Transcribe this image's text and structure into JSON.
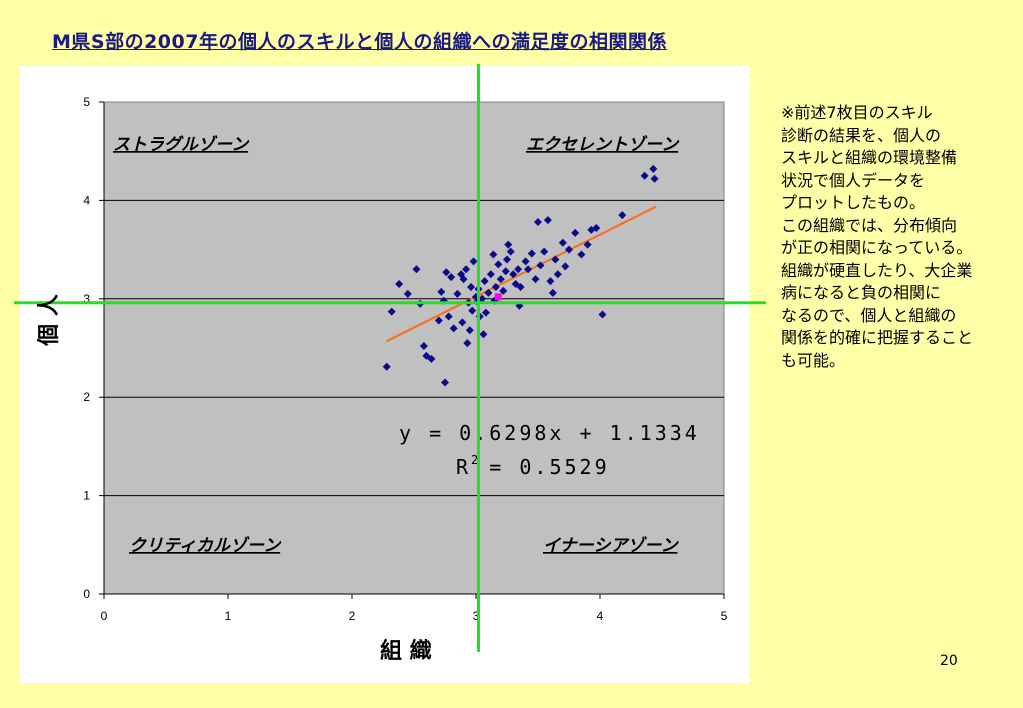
{
  "title": "M県S部の2007年の個人のスキルと個人の組織への満足度の相関関係",
  "note_lines": [
    "※前述7枚目のスキル",
    "診断の結果を、個人の",
    "スキルと組織の環境整備",
    "状況で個人データを",
    "プロットしたもの。",
    "この組織では、分布傾向",
    "が正の相関になっている。",
    "組織が硬直したり、大企業",
    "病になると負の相関に",
    "なるので、個人と組織の",
    "関係を的確に把握すること",
    "も可能。"
  ],
  "page_number": "20",
  "colors": {
    "background": "#FFFFA8",
    "plot_background": "#C0C0C0",
    "points": "#0A0A8C",
    "trendline": "#FF6A13",
    "crosshair": "#22E022",
    "title": "#1A1A80"
  },
  "chart_data": {
    "type": "scatter",
    "xlabel": "組 織",
    "ylabel": "個 人",
    "xlim": [
      0,
      5
    ],
    "ylim": [
      0,
      5
    ],
    "x_ticks": [
      "0",
      "1",
      "2",
      "3",
      "4",
      "5"
    ],
    "y_ticks": [
      "0",
      "1",
      "2",
      "3",
      "4",
      "5"
    ],
    "grid": "horizontal",
    "zones": {
      "top_left": "ストラグルゾーン",
      "top_right": "エクセレントゾーン",
      "bottom_left": "クリティカルゾーン",
      "bottom_right": "イナーシアゾーン"
    },
    "trendline": {
      "slope": 0.6298,
      "intercept": 1.1334,
      "x_range": [
        2.28,
        4.45
      ]
    },
    "equation": {
      "y_line": "y = 0.6298x + 1.1334",
      "r2_label": "R",
      "r2_superscript": "2",
      "r2_value": "= 0.5529"
    },
    "crosshair": {
      "x": 3.02,
      "y": 2.96
    },
    "points": [
      [
        2.28,
        2.31
      ],
      [
        2.32,
        2.87
      ],
      [
        2.38,
        3.15
      ],
      [
        2.45,
        3.05
      ],
      [
        2.52,
        3.3
      ],
      [
        2.55,
        2.95
      ],
      [
        2.58,
        2.52
      ],
      [
        2.6,
        2.42
      ],
      [
        2.64,
        2.39
      ],
      [
        2.7,
        2.78
      ],
      [
        2.72,
        3.07
      ],
      [
        2.74,
        2.98
      ],
      [
        2.75,
        2.15
      ],
      [
        2.76,
        3.27
      ],
      [
        2.78,
        2.82
      ],
      [
        2.8,
        3.22
      ],
      [
        2.82,
        2.7
      ],
      [
        2.85,
        3.05
      ],
      [
        2.88,
        3.25
      ],
      [
        2.89,
        2.76
      ],
      [
        2.9,
        3.2
      ],
      [
        2.92,
        3.3
      ],
      [
        2.93,
        2.55
      ],
      [
        2.94,
        2.96
      ],
      [
        2.95,
        2.68
      ],
      [
        2.96,
        3.12
      ],
      [
        2.97,
        2.88
      ],
      [
        2.98,
        3.38
      ],
      [
        3.0,
        3.02
      ],
      [
        3.01,
        2.97
      ],
      [
        3.02,
        3.1
      ],
      [
        3.03,
        2.82
      ],
      [
        3.05,
        3.0
      ],
      [
        3.06,
        2.64
      ],
      [
        3.07,
        3.18
      ],
      [
        3.08,
        2.86
      ],
      [
        3.1,
        3.06
      ],
      [
        3.12,
        3.25
      ],
      [
        3.14,
        3.45
      ],
      [
        3.15,
        2.98
      ],
      [
        3.16,
        3.12
      ],
      [
        3.18,
        3.35
      ],
      [
        3.2,
        3.2
      ],
      [
        3.22,
        3.08
      ],
      [
        3.24,
        3.28
      ],
      [
        3.25,
        3.4
      ],
      [
        3.26,
        3.55
      ],
      [
        3.28,
        3.48
      ],
      [
        3.3,
        3.25
      ],
      [
        3.32,
        3.15
      ],
      [
        3.34,
        3.3
      ],
      [
        3.35,
        2.93
      ],
      [
        3.36,
        3.12
      ],
      [
        3.4,
        3.38
      ],
      [
        3.42,
        3.3
      ],
      [
        3.45,
        3.46
      ],
      [
        3.48,
        3.2
      ],
      [
        3.5,
        3.78
      ],
      [
        3.52,
        3.34
      ],
      [
        3.55,
        3.48
      ],
      [
        3.58,
        3.8
      ],
      [
        3.6,
        3.18
      ],
      [
        3.62,
        3.06
      ],
      [
        3.64,
        3.4
      ],
      [
        3.66,
        3.25
      ],
      [
        3.7,
        3.57
      ],
      [
        3.72,
        3.33
      ],
      [
        3.75,
        3.5
      ],
      [
        3.8,
        3.67
      ],
      [
        3.85,
        3.45
      ],
      [
        3.9,
        3.55
      ],
      [
        3.93,
        3.7
      ],
      [
        3.97,
        3.72
      ],
      [
        4.02,
        2.84
      ],
      [
        4.18,
        3.85
      ],
      [
        4.36,
        4.25
      ],
      [
        4.43,
        4.32
      ],
      [
        4.44,
        4.22
      ]
    ],
    "highlight_point": [
      3.18,
      3.02
    ]
  }
}
